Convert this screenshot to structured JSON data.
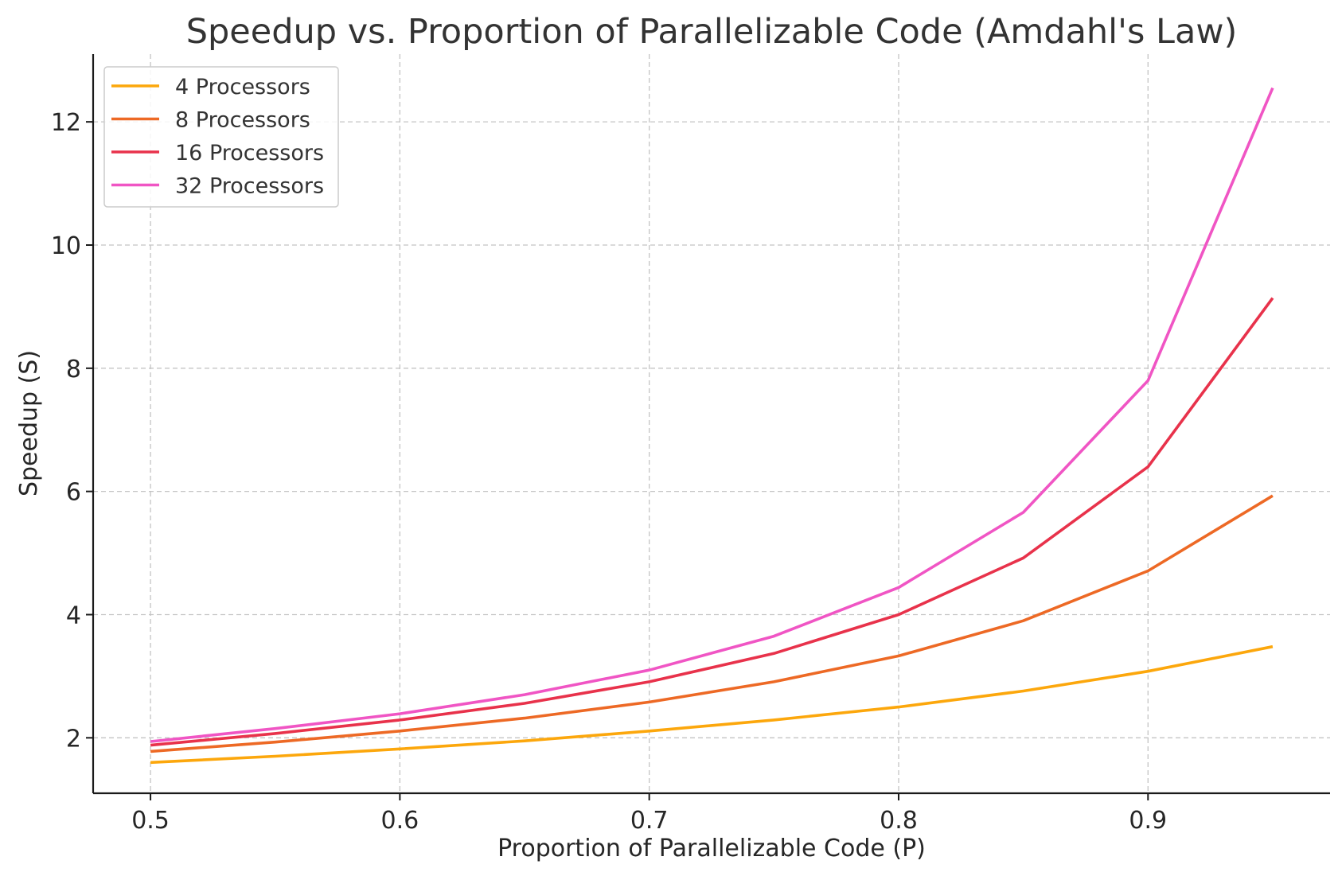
{
  "chart_data": {
    "type": "line",
    "title": "Speedup vs. Proportion of Parallelizable Code (Amdahl's Law)",
    "xlabel": "Proportion of Parallelizable Code (P)",
    "ylabel": "Speedup (S)",
    "xlim": [
      0.477,
      0.973
    ],
    "ylim": [
      1.1,
      13.1
    ],
    "grid": true,
    "legend_position": "upper-left",
    "xticks": [
      0.5,
      0.6,
      0.7,
      0.8,
      0.9
    ],
    "xtick_labels": [
      "0.5",
      "0.6",
      "0.7",
      "0.8",
      "0.9"
    ],
    "yticks": [
      2,
      4,
      6,
      8,
      10,
      12
    ],
    "ytick_labels": [
      "2",
      "4",
      "6",
      "8",
      "10",
      "12"
    ],
    "x": [
      0.5,
      0.55,
      0.6,
      0.65,
      0.7,
      0.75,
      0.8,
      0.85,
      0.9,
      0.95
    ],
    "series": [
      {
        "name": "4 Processors",
        "color": "#fca70c",
        "values": [
          1.6,
          1.7,
          1.82,
          1.95,
          2.11,
          2.29,
          2.5,
          2.76,
          3.08,
          3.48
        ]
      },
      {
        "name": "8 Processors",
        "color": "#ed6925",
        "values": [
          1.78,
          1.93,
          2.11,
          2.32,
          2.58,
          2.91,
          3.33,
          3.9,
          4.71,
          5.93
        ]
      },
      {
        "name": "16 Processors",
        "color": "#e8324b",
        "values": [
          1.88,
          2.07,
          2.29,
          2.56,
          2.91,
          3.37,
          4.0,
          4.92,
          6.4,
          9.14
        ]
      },
      {
        "name": "32 Processors",
        "color": "#f055c4",
        "values": [
          1.94,
          2.15,
          2.39,
          2.7,
          3.1,
          3.65,
          4.44,
          5.66,
          7.8,
          12.55
        ]
      }
    ]
  }
}
